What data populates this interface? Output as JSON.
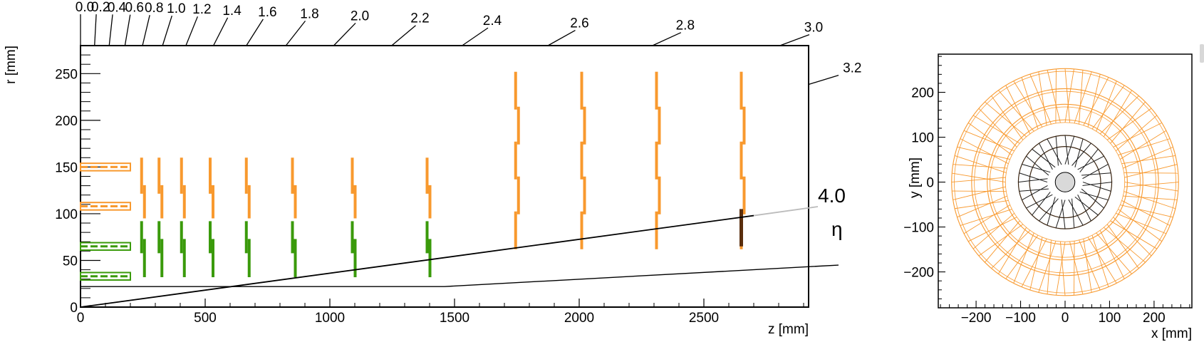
{
  "colors": {
    "orange": "#f8992e",
    "green": "#3a9a0b",
    "brown": "#5a2e0d",
    "grey_line": "#bcbcbc",
    "beampipe_fill": "#d9d9d9"
  },
  "left_plot": {
    "xlabel": "z [mm]",
    "ylabel": "r [mm]",
    "x_ticks": [
      "0",
      "500",
      "1000",
      "1500",
      "2000",
      "2500"
    ],
    "y_ticks": [
      "0",
      "50",
      "100",
      "150",
      "200",
      "250"
    ],
    "eta_ticks": [
      "0.0",
      "0.2",
      "0.4",
      "0.6",
      "0.8",
      "1.0",
      "1.2",
      "1.4",
      "1.6",
      "1.8",
      "2.0",
      "2.2",
      "2.4",
      "2.6",
      "2.8",
      "3.0",
      "3.2"
    ],
    "eta_big_value": "4.0",
    "eta_symbol": "η"
  },
  "right_plot": {
    "xlabel": "x [mm]",
    "ylabel": "y [mm]",
    "x_ticks": [
      "−200",
      "−100",
      "0",
      "100",
      "200"
    ],
    "y_ticks": [
      "200",
      "100",
      "0",
      "−100",
      "−200"
    ]
  },
  "chart_data": {
    "type": "diagram",
    "left": {
      "xlim": [
        0,
        2920
      ],
      "ylim": [
        0,
        280
      ],
      "barrel_layers": [
        {
          "color": "orange",
          "r": 150,
          "z": [
            0,
            200
          ]
        },
        {
          "color": "orange",
          "r": 108,
          "z": [
            0,
            200
          ]
        },
        {
          "color": "green",
          "r": 65,
          "z": [
            0,
            200
          ]
        },
        {
          "color": "green",
          "r": 33,
          "z": [
            0,
            200
          ]
        }
      ],
      "inner_disks": {
        "z": [
          245,
          315,
          405,
          520,
          665,
          850,
          1090,
          1390
        ],
        "orange_r": [
          95,
          160
        ],
        "green_r": [
          32,
          92
        ]
      },
      "outer_disks": {
        "z": [
          1745,
          2010,
          2310,
          2650
        ],
        "orange_r": [
          65,
          252
        ],
        "brown_z": 2650,
        "brown_r": [
          65,
          105
        ]
      },
      "eta_line_4": {
        "z": 2700,
        "r": 98
      },
      "beam_line": {
        "points": [
          [
            0,
            22
          ],
          [
            1460,
            22
          ],
          [
            3040,
            45
          ]
        ]
      }
    },
    "right": {
      "xlim": [
        -285,
        285
      ],
      "ylim": [
        -280,
        285
      ],
      "beampipe_radius": 22,
      "inner_rings": [
        80,
        105
      ],
      "outer_rings": [
        140,
        175,
        210,
        255
      ],
      "inner_modules": 16,
      "outer_modules": 40
    }
  }
}
